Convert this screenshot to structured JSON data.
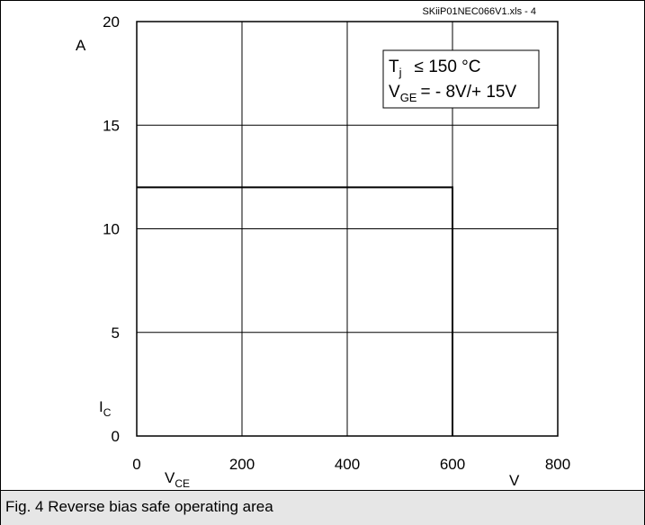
{
  "header": {
    "file_ref": "SKiiP01NEC066V1.xls - 4"
  },
  "caption": "Fig. 4 Reverse bias safe operating area",
  "legend": {
    "line1_main": "T",
    "line1_sub": "j",
    "line1_rest": "≤ 150 °C",
    "line2_main": "V",
    "line2_sub": "GE",
    "line2_rest": "= - 8V/+ 15V"
  },
  "chart_data": {
    "type": "line",
    "title": "",
    "xlabel": "VCE",
    "xlabel_main": "V",
    "xlabel_sub": "CE",
    "xunit": "V",
    "ylabel": "IC",
    "ylabel_main": "I",
    "ylabel_sub": "C",
    "yunit": "A",
    "xlim": [
      0,
      800
    ],
    "ylim": [
      0,
      20
    ],
    "xticks": [
      0,
      200,
      400,
      600,
      800
    ],
    "yticks": [
      0,
      5,
      10,
      15,
      20
    ],
    "grid": true,
    "series": [
      {
        "x": [
          0,
          600,
          600
        ],
        "y": [
          12,
          12,
          0
        ]
      }
    ]
  }
}
